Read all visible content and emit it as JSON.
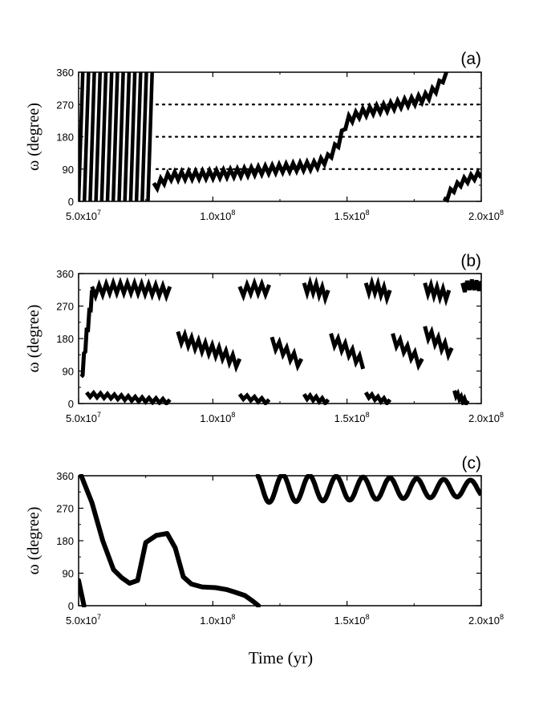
{
  "chart_data": [
    {
      "type": "line",
      "panel_label": "(a)",
      "ylabel": "ω  (degree)",
      "xlim": [
        50000000,
        200000000
      ],
      "ylim": [
        0,
        360
      ],
      "xticks": [
        50000000,
        100000000,
        150000000,
        200000000
      ],
      "xtick_labels": [
        "5.0x10",
        "1.0x10",
        "1.5x10",
        "2.0x10"
      ],
      "xtick_exponent": "7/8",
      "yticks": [
        0,
        90,
        180,
        270,
        360
      ],
      "ytick_labels": [
        "0",
        "90",
        "180",
        "270",
        "360"
      ],
      "reference_lines": [
        90,
        180,
        270
      ],
      "series": [
        {
          "name": "omega",
          "description": "circulating 0-360 until ~7.8e7, then libration around ~80 deg rising to ~360 by 1.87e8, wrap to 0 and rise to ~80 at 2.0e8",
          "segments": [
            {
              "style": "sweeps",
              "x_start": 50000000,
              "x_end": 78000000,
              "count": 13
            },
            {
              "style": "band",
              "amplitude": 22,
              "x": [
                78000000,
                84000000,
                90000000,
                100000000,
                110000000,
                120000000,
                130000000,
                138000000,
                143000000,
                147000000,
                150000000,
                155000000,
                160000000,
                165000000,
                170000000,
                175000000,
                180000000,
                184000000,
                187000000
              ],
              "y": [
                40,
                70,
                72,
                75,
                80,
                88,
                95,
                100,
                120,
                165,
                225,
                245,
                255,
                262,
                272,
                280,
                292,
                320,
                360
              ]
            },
            {
              "style": "band",
              "amplitude": 18,
              "x": [
                186000000,
                189000000,
                193000000,
                197000000,
                200000000
              ],
              "y": [
                0,
                30,
                55,
                68,
                75
              ]
            }
          ]
        }
      ]
    },
    {
      "type": "line",
      "panel_label": "(b)",
      "ylabel": "ω  (degree)",
      "xlim": [
        50000000,
        200000000
      ],
      "ylim": [
        0,
        360
      ],
      "xticks": [
        50000000,
        100000000,
        150000000,
        200000000
      ],
      "xtick_labels": [
        "5.0x10",
        "1.0x10",
        "1.5x10",
        "2.0x10"
      ],
      "xtick_exponent": "7/8",
      "yticks": [
        0,
        90,
        180,
        270,
        360
      ],
      "ytick_labels": [
        "0",
        "90",
        "180",
        "270",
        "360"
      ],
      "series": [
        {
          "name": "omega",
          "description": "alternating intervals of libration near ~310 deg and ~150 deg with fast transitions",
          "segments": [
            {
              "style": "band",
              "amplitude": 28,
              "x": [
                51000000,
                53000000,
                55000000
              ],
              "y": [
                60,
                190,
                300
              ]
            },
            {
              "style": "band",
              "amplitude": 28,
              "x": [
                55000000,
                62000000,
                70000000,
                78000000,
                84000000
              ],
              "y": [
                310,
                320,
                320,
                315,
                310
              ]
            },
            {
              "style": "band",
              "amplitude": 12,
              "x": [
                53000000,
                62000000,
                72000000,
                80000000,
                84000000
              ],
              "y": [
                25,
                20,
                12,
                8,
                5
              ]
            },
            {
              "style": "band",
              "amplitude": 28,
              "x": [
                87000000,
                95000000,
                103000000,
                110000000
              ],
              "y": [
                185,
                160,
                140,
                110
              ]
            },
            {
              "style": "band",
              "amplitude": 28,
              "x": [
                110000000,
                115000000,
                121000000
              ],
              "y": [
                310,
                320,
                315
              ]
            },
            {
              "style": "band",
              "amplitude": 12,
              "x": [
                110000000,
                116000000,
                121000000
              ],
              "y": [
                20,
                12,
                5
              ]
            },
            {
              "style": "band",
              "amplitude": 28,
              "x": [
                122000000,
                126000000,
                133000000
              ],
              "y": [
                170,
                150,
                110
              ]
            },
            {
              "style": "band",
              "amplitude": 28,
              "x": [
                134000000,
                138000000,
                143000000
              ],
              "y": [
                320,
                320,
                300
              ]
            },
            {
              "style": "band",
              "amplitude": 12,
              "x": [
                134000000,
                139000000,
                143000000
              ],
              "y": [
                20,
                12,
                5
              ]
            },
            {
              "style": "band",
              "amplitude": 28,
              "x": [
                144000000,
                150000000,
                156000000
              ],
              "y": [
                180,
                150,
                110
              ]
            },
            {
              "style": "band",
              "amplitude": 28,
              "x": [
                157000000,
                161000000,
                166000000
              ],
              "y": [
                320,
                320,
                300
              ]
            },
            {
              "style": "band",
              "amplitude": 12,
              "x": [
                157000000,
                162000000,
                166000000
              ],
              "y": [
                25,
                12,
                5
              ]
            },
            {
              "style": "band",
              "amplitude": 28,
              "x": [
                167000000,
                172000000,
                178000000
              ],
              "y": [
                180,
                150,
                110
              ]
            },
            {
              "style": "band",
              "amplitude": 28,
              "x": [
                179000000,
                183000000,
                188000000
              ],
              "y": [
                320,
                310,
                300
              ]
            },
            {
              "style": "band",
              "amplitude": 28,
              "x": [
                179000000,
                184000000,
                189000000
              ],
              "y": [
                200,
                170,
                140
              ]
            },
            {
              "style": "band",
              "amplitude": 12,
              "x": [
                190000000,
                193000000,
                195000000
              ],
              "y": [
                30,
                10,
                2
              ]
            },
            {
              "style": "band",
              "amplitude": 28,
              "x": [
                193000000,
                196000000,
                200000000
              ],
              "y": [
                320,
                330,
                325
              ]
            }
          ]
        }
      ]
    },
    {
      "type": "line",
      "panel_label": "(c)",
      "ylabel": "ω  (degree)",
      "xlabel": "Time (yr)",
      "xlim": [
        50000000,
        200000000
      ],
      "ylim": [
        0,
        360
      ],
      "xticks": [
        50000000,
        100000000,
        150000000,
        200000000
      ],
      "xtick_labels": [
        "5.0x10",
        "1.0x10",
        "1.5x10",
        "2.0x10"
      ],
      "xtick_exponent": "7/8",
      "yticks": [
        0,
        90,
        180,
        270,
        360
      ],
      "ytick_labels": [
        "0",
        "90",
        "180",
        "270",
        "360"
      ],
      "series": [
        {
          "name": "omega",
          "description": "descends from 360 to ~60, rises to ~200 near 8.2e7, decays to ~0 at 1.15e8, then oscillates between ~290 and ~355",
          "segments": [
            {
              "style": "line",
              "x": [
                50000000,
                52000000
              ],
              "y": [
                70,
                0
              ]
            },
            {
              "style": "line",
              "x": [
                51000000,
                55000000,
                59000000,
                63000000,
                66000000,
                69000000,
                72000000,
                75000000,
                79000000,
                83000000,
                86000000,
                89000000,
                92000000,
                96000000,
                101000000,
                105000000,
                108000000,
                112000000,
                115000000,
                117000000
              ],
              "y": [
                360,
                285,
                180,
                100,
                78,
                62,
                70,
                175,
                195,
                200,
                160,
                80,
                60,
                52,
                50,
                45,
                38,
                28,
                12,
                0
              ]
            },
            {
              "style": "wave",
              "x_start": 116000000,
              "x_end": 200000000,
              "period": 10000000,
              "base": 325,
              "amplitude_start": 40,
              "amplitude_end": 22
            }
          ]
        }
      ]
    }
  ]
}
